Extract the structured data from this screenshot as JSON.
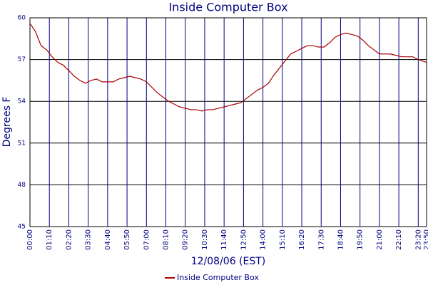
{
  "chart_data": {
    "type": "line",
    "title": "Inside Computer Box",
    "xlabel": "12/08/06 (EST)",
    "ylabel": "Degrees F",
    "x": [
      0,
      20,
      40,
      60,
      80,
      100,
      120,
      140,
      160,
      180,
      200,
      220,
      240,
      260,
      280,
      300,
      320,
      340,
      360,
      380,
      400,
      420,
      440,
      460,
      480,
      500,
      520,
      540,
      560,
      580,
      600,
      620,
      640,
      660,
      680,
      700,
      720,
      740,
      760,
      780,
      800,
      820,
      840,
      860,
      880,
      900,
      920,
      940,
      960,
      980,
      1000,
      1020,
      1040,
      1060,
      1080,
      1100,
      1120,
      1140,
      1160,
      1180,
      1200,
      1220,
      1240,
      1260,
      1280,
      1300,
      1320,
      1340,
      1360,
      1380,
      1400,
      1430
    ],
    "series": [
      {
        "name": "Inside Computer Box",
        "color": "#aa0000",
        "values": [
          59.6,
          59.0,
          58.0,
          57.7,
          57.2,
          56.8,
          56.6,
          56.2,
          55.8,
          55.5,
          55.3,
          55.5,
          55.6,
          55.4,
          55.4,
          55.4,
          55.6,
          55.7,
          55.8,
          55.7,
          55.6,
          55.4,
          55.0,
          54.6,
          54.3,
          54.0,
          53.8,
          53.6,
          53.5,
          53.4,
          53.4,
          53.3,
          53.4,
          53.4,
          53.5,
          53.6,
          53.7,
          53.8,
          53.9,
          54.2,
          54.5,
          54.8,
          55.0,
          55.3,
          55.9,
          56.4,
          56.9,
          57.4,
          57.6,
          57.8,
          58.0,
          58.0,
          57.9,
          57.9,
          58.2,
          58.6,
          58.8,
          58.9,
          58.8,
          58.7,
          58.4,
          58.0,
          57.7,
          57.4,
          57.4,
          57.4,
          57.3,
          57.2,
          57.2,
          57.2,
          57.0,
          56.8
        ]
      }
    ],
    "xlim": [
      0,
      1430
    ],
    "xticks": [
      {
        "value": 0,
        "label": "00:00"
      },
      {
        "value": 70,
        "label": "01:10"
      },
      {
        "value": 140,
        "label": "02:20"
      },
      {
        "value": 210,
        "label": "03:30"
      },
      {
        "value": 280,
        "label": "04:40"
      },
      {
        "value": 350,
        "label": "05:50"
      },
      {
        "value": 420,
        "label": "07:00"
      },
      {
        "value": 490,
        "label": "08:10"
      },
      {
        "value": 560,
        "label": "09:20"
      },
      {
        "value": 630,
        "label": "10:30"
      },
      {
        "value": 700,
        "label": "11:40"
      },
      {
        "value": 770,
        "label": "12:50"
      },
      {
        "value": 840,
        "label": "14:00"
      },
      {
        "value": 910,
        "label": "15:10"
      },
      {
        "value": 980,
        "label": "16:20"
      },
      {
        "value": 1050,
        "label": "17:30"
      },
      {
        "value": 1120,
        "label": "18:40"
      },
      {
        "value": 1190,
        "label": "19:50"
      },
      {
        "value": 1260,
        "label": "21:00"
      },
      {
        "value": 1330,
        "label": "22:10"
      },
      {
        "value": 1400,
        "label": "23:20"
      },
      {
        "value": 1430,
        "label": "23:50"
      }
    ],
    "ylim": [
      45,
      60
    ],
    "yticks": [
      45,
      48,
      51,
      54,
      57,
      60
    ],
    "grid": true
  }
}
